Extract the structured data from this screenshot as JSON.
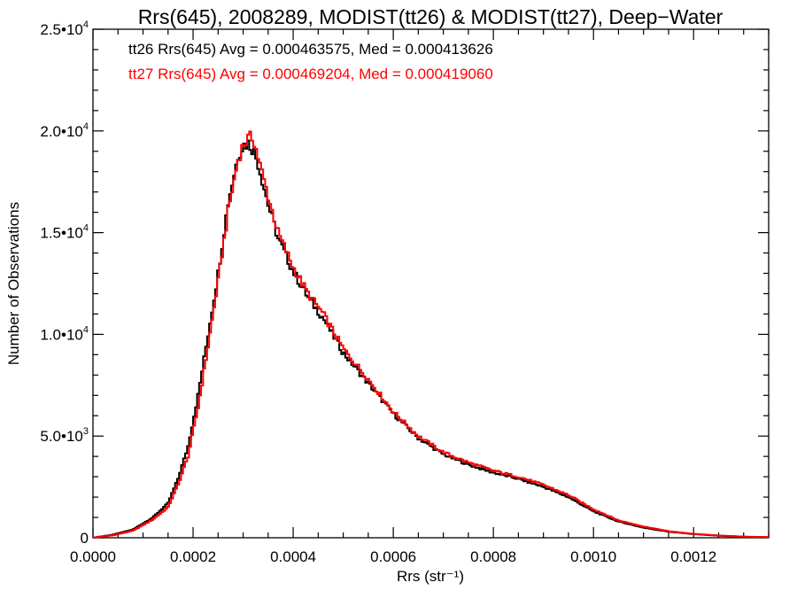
{
  "chart_data": {
    "type": "line",
    "title": "Rrs(645), 2008289, MODIST(tt26) & MODIST(tt27), Deep−Water",
    "xlabel": "Rrs (str⁻¹)",
    "ylabel": "Number of Observations",
    "xlim": [
      0,
      0.00135
    ],
    "ylim": [
      0,
      25000
    ],
    "x_ticks": [
      "0.0000",
      "0.0002",
      "0.0004",
      "0.0006",
      "0.0008",
      "0.0010",
      "0.0012"
    ],
    "x_tick_values": [
      0,
      0.0002,
      0.0004,
      0.0006,
      0.0008,
      0.001,
      0.0012
    ],
    "y_tick_values": [
      0,
      5000,
      10000,
      15000,
      20000,
      25000
    ],
    "y_tick_labels": [
      {
        "mant": "0",
        "exp": ""
      },
      {
        "mant": "5.0•10",
        "exp": "3"
      },
      {
        "mant": "1.0•10",
        "exp": "4"
      },
      {
        "mant": "1.5•10",
        "exp": "4"
      },
      {
        "mant": "2.0•10",
        "exp": "4"
      },
      {
        "mant": "2.5•10",
        "exp": "4"
      }
    ],
    "grid": false,
    "annotations": [
      {
        "text": "tt26 Rrs(645) Avg = 0.000463575, Med = 0.000413626",
        "color": "#000000"
      },
      {
        "text": "tt27 Rrs(645) Avg = 0.000469204, Med = 0.000419060",
        "color": "#ff0000"
      }
    ],
    "series": [
      {
        "color": "#000000",
        "x": [
          0,
          4e-05,
          8e-05,
          0.00012,
          0.00015,
          0.00017,
          0.00019,
          0.00021,
          0.00023,
          0.00025,
          0.00027,
          0.00029,
          0.0003,
          0.00031,
          0.00032,
          0.00033,
          0.00035,
          0.00037,
          0.0004,
          0.00043,
          0.00046,
          0.0005,
          0.00055,
          0.0006,
          0.00065,
          0.0007,
          0.00075,
          0.0008,
          0.00085,
          0.0009,
          0.00095,
          0.001,
          0.00105,
          0.0011,
          0.00115,
          0.0012,
          0.00125,
          0.0013,
          0.00135
        ],
        "y": [
          0,
          150,
          400,
          1000,
          1700,
          2900,
          4500,
          7000,
          10000,
          13000,
          16500,
          18800,
          19300,
          19400,
          19100,
          18400,
          16400,
          14700,
          13100,
          11800,
          10800,
          9100,
          7600,
          6100,
          4900,
          4100,
          3600,
          3200,
          2900,
          2500,
          2000,
          1300,
          800,
          500,
          300,
          180,
          100,
          50,
          30
        ]
      },
      {
        "color": "#ff0000",
        "x": [
          0,
          4e-05,
          8e-05,
          0.00012,
          0.00015,
          0.00017,
          0.00019,
          0.00021,
          0.00023,
          0.00025,
          0.00027,
          0.00029,
          0.0003,
          0.00031,
          0.00032,
          0.00033,
          0.00035,
          0.00037,
          0.0004,
          0.00043,
          0.00046,
          0.0005,
          0.00055,
          0.0006,
          0.00065,
          0.0007,
          0.00075,
          0.0008,
          0.00085,
          0.0009,
          0.00095,
          0.001,
          0.00105,
          0.0011,
          0.00115,
          0.0012,
          0.00125,
          0.0013,
          0.00135
        ],
        "y": [
          0,
          120,
          350,
          900,
          1500,
          2600,
          4000,
          6400,
          9400,
          12600,
          16000,
          18600,
          19300,
          19600,
          19700,
          18700,
          16800,
          15000,
          13300,
          12000,
          11000,
          9300,
          7800,
          6200,
          5000,
          4200,
          3700,
          3300,
          3000,
          2600,
          2100,
          1400,
          850,
          550,
          320,
          190,
          110,
          55,
          30
        ]
      }
    ]
  }
}
